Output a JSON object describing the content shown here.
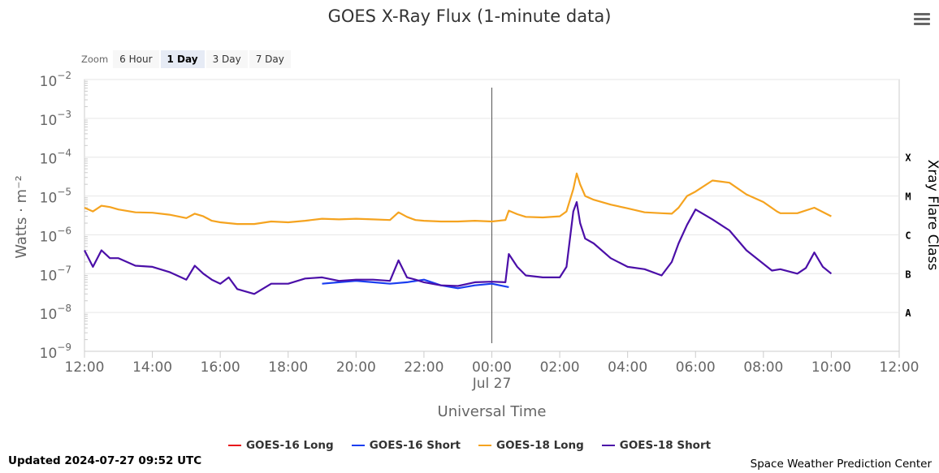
{
  "chart_data": {
    "type": "line",
    "title": "GOES X-Ray Flux (1-minute data)",
    "xlabel": "Universal Time",
    "ylabel": "Watts · m⁻²",
    "y2label": "Xray Flare Class",
    "yscale": "log",
    "ylim": [
      1e-09,
      0.01
    ],
    "y_ticks": [
      {
        "base": "10",
        "exp": "−9",
        "value": 1e-09
      },
      {
        "base": "10",
        "exp": "−8",
        "value": 1e-08
      },
      {
        "base": "10",
        "exp": "−7",
        "value": 1e-07
      },
      {
        "base": "10",
        "exp": "−6",
        "value": 1e-06
      },
      {
        "base": "10",
        "exp": "−5",
        "value": 1e-05
      },
      {
        "base": "10",
        "exp": "−4",
        "value": 0.0001
      },
      {
        "base": "10",
        "exp": "−3",
        "value": 0.001
      },
      {
        "base": "10",
        "exp": "−2",
        "value": 0.01
      }
    ],
    "flare_classes": [
      {
        "label": "A",
        "value": 1e-08
      },
      {
        "label": "B",
        "value": 1e-07
      },
      {
        "label": "C",
        "value": 1e-06
      },
      {
        "label": "M",
        "value": 1e-05
      },
      {
        "label": "X",
        "value": 0.0001
      }
    ],
    "x_unit": "hours since 2024-07-26 12:00 UTC",
    "xlim": [
      0,
      24
    ],
    "x_ticks": [
      {
        "value": 0,
        "label": "12:00"
      },
      {
        "value": 2,
        "label": "14:00"
      },
      {
        "value": 4,
        "label": "16:00"
      },
      {
        "value": 6,
        "label": "18:00"
      },
      {
        "value": 8,
        "label": "20:00"
      },
      {
        "value": 10,
        "label": "22:00"
      },
      {
        "value": 12,
        "label": "00:00",
        "sublabel": "Jul 27"
      },
      {
        "value": 14,
        "label": "02:00"
      },
      {
        "value": 16,
        "label": "04:00"
      },
      {
        "value": 18,
        "label": "06:00"
      },
      {
        "value": 20,
        "label": "08:00"
      },
      {
        "value": 22,
        "label": "10:00"
      },
      {
        "value": 24,
        "label": "12:00"
      }
    ],
    "crosshair_x": 12,
    "legend_position": "bottom",
    "series": [
      {
        "name": "GOES-16 Long",
        "color": "#e8161b",
        "x": [],
        "y": []
      },
      {
        "name": "GOES-16 Short",
        "color": "#1b3ef0",
        "x": [
          7.0,
          7.5,
          8.0,
          8.5,
          9.0,
          9.5,
          10.0,
          10.5,
          11.0,
          11.5,
          12.0,
          12.5
        ],
        "y": [
          5.5e-08,
          6e-08,
          6.5e-08,
          6e-08,
          5.5e-08,
          6e-08,
          7e-08,
          5e-08,
          4.2e-08,
          5e-08,
          5.5e-08,
          4.5e-08
        ]
      },
      {
        "name": "GOES-18 Long",
        "color": "#f5a31f",
        "x": [
          0,
          0.25,
          0.5,
          0.75,
          1,
          1.5,
          2,
          2.5,
          3,
          3.25,
          3.5,
          3.75,
          4,
          4.5,
          5,
          5.5,
          6,
          6.5,
          7,
          7.5,
          8,
          8.5,
          9,
          9.25,
          9.5,
          9.75,
          10,
          10.5,
          11,
          11.5,
          12,
          12.4,
          12.5,
          12.75,
          13,
          13.5,
          14,
          14.2,
          14.4,
          14.5,
          14.6,
          14.75,
          15,
          15.5,
          16,
          16.5,
          17,
          17.3,
          17.5,
          17.75,
          18,
          18.5,
          19,
          19.5,
          20,
          20.4,
          20.5,
          21,
          21.5,
          22
        ],
        "y": [
          5e-06,
          4e-06,
          5.6e-06,
          5.2e-06,
          4.5e-06,
          3.8e-06,
          3.7e-06,
          3.3e-06,
          2.7e-06,
          3.5e-06,
          3e-06,
          2.3e-06,
          2.1e-06,
          1.9e-06,
          1.9e-06,
          2.2e-06,
          2.1e-06,
          2.3e-06,
          2.6e-06,
          2.5e-06,
          2.6e-06,
          2.5e-06,
          2.4e-06,
          3.8e-06,
          2.9e-06,
          2.4e-06,
          2.3e-06,
          2.2e-06,
          2.2e-06,
          2.3e-06,
          2.2e-06,
          2.4e-06,
          4.2e-06,
          3.4e-06,
          2.9e-06,
          2.8e-06,
          3e-06,
          4e-06,
          1.5e-05,
          3.8e-05,
          2e-05,
          1e-05,
          8e-06,
          6e-06,
          4.8e-06,
          3.8e-06,
          3.6e-06,
          3.5e-06,
          5e-06,
          1e-05,
          1.3e-05,
          2.5e-05,
          2.2e-05,
          1.1e-05,
          7e-06,
          4e-06,
          3.6e-06,
          3.6e-06,
          5e-06,
          3e-06
        ]
      },
      {
        "name": "GOES-18 Short",
        "color": "#4b0fa8",
        "x": [
          0,
          0.25,
          0.5,
          0.75,
          1,
          1.5,
          2,
          2.5,
          3,
          3.25,
          3.5,
          3.75,
          4,
          4.25,
          4.5,
          5,
          5.5,
          6,
          6.5,
          7,
          7.5,
          8,
          8.5,
          9,
          9.25,
          9.5,
          9.75,
          10,
          10.5,
          11,
          11.5,
          12,
          12.4,
          12.5,
          12.75,
          13,
          13.5,
          14,
          14.2,
          14.4,
          14.5,
          14.6,
          14.75,
          15,
          15.5,
          16,
          16.5,
          17,
          17.3,
          17.5,
          17.75,
          18,
          18.5,
          19,
          19.5,
          20,
          20.25,
          20.5,
          21,
          21.25,
          21.5,
          21.75,
          22
        ],
        "y": [
          4e-07,
          1.5e-07,
          4e-07,
          2.5e-07,
          2.5e-07,
          1.6e-07,
          1.5e-07,
          1.1e-07,
          7e-08,
          1.6e-07,
          1e-07,
          7e-08,
          5.5e-08,
          8e-08,
          4e-08,
          3e-08,
          5.5e-08,
          5.5e-08,
          7.5e-08,
          8e-08,
          6.5e-08,
          7e-08,
          7e-08,
          6.5e-08,
          2.2e-07,
          8e-08,
          7e-08,
          6e-08,
          5e-08,
          4.8e-08,
          6e-08,
          6.2e-08,
          6e-08,
          3.2e-07,
          1.5e-07,
          9e-08,
          8e-08,
          8e-08,
          1.5e-07,
          4e-06,
          7e-06,
          2e-06,
          8e-07,
          6e-07,
          2.5e-07,
          1.5e-07,
          1.3e-07,
          9e-08,
          2e-07,
          6e-07,
          1.8e-06,
          4.5e-06,
          2.5e-06,
          1.3e-06,
          4e-07,
          1.8e-07,
          1.2e-07,
          1.3e-07,
          1e-07,
          1.4e-07,
          3.5e-07,
          1.5e-07,
          1e-07
        ]
      }
    ]
  },
  "toolbar": {
    "zoom_label": "Zoom",
    "zoom_options": [
      "6 Hour",
      "1 Day",
      "3 Day",
      "7 Day"
    ],
    "active_zoom": "1 Day"
  },
  "footer": {
    "updated": "Updated 2024-07-27 09:52 UTC",
    "credit": "Space Weather Prediction Center"
  }
}
